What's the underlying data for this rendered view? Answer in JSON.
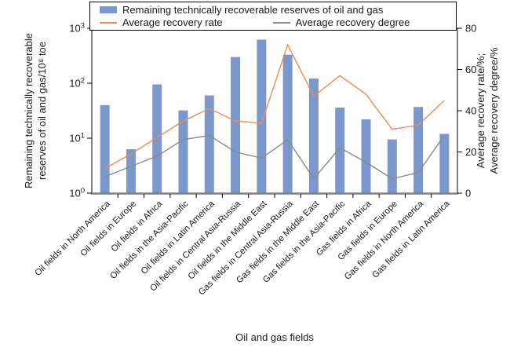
{
  "legend": {
    "bar_label": "Remaining technically recoverable reserves of oil and gas",
    "rate_label": "Average recovery rate",
    "degree_label": "Average recovery degree"
  },
  "colors": {
    "bar": "#7C97CB",
    "rate_line": "#ED8C50",
    "degree_line": "#898989",
    "frame": "#000000",
    "baseline": "#7F7F7F"
  },
  "chart_data": {
    "type": "bar",
    "title": "",
    "xlabel": "Oil and gas fields",
    "categories": [
      "Oil fields in North America",
      "Oil fields in Europe",
      "Oil fields in Africa",
      "Oil fields in the Asia-Pacific",
      "Oil fields in Latin America",
      "Oil fields in Central Asia-Russia",
      "Oil fields in the Middle East",
      "Gas fields in Central Asia-Russia",
      "Gas fields in the Middle East",
      "Gas fields in the Asia-Pacific",
      "Gas fields in Africa",
      "Gas fields in Europe",
      "Gas fields in North America",
      "Gas fields in Latin America"
    ],
    "series": [
      {
        "name": "Remaining technically recoverable reserves of oil and gas",
        "type": "bar",
        "axis": "left-log",
        "values": [
          40,
          6.3,
          95,
          32,
          60,
          300,
          620,
          330,
          122,
          36,
          22,
          9.5,
          37,
          12
        ]
      },
      {
        "name": "Average recovery rate",
        "type": "line",
        "axis": "right-linear",
        "values": [
          12,
          19,
          27,
          35,
          41,
          35,
          34,
          72,
          47,
          57,
          48,
          31,
          33,
          45
        ]
      },
      {
        "name": "Average recovery degree",
        "type": "line",
        "axis": "right-linear",
        "values": [
          8,
          13,
          18,
          26,
          28,
          20,
          17,
          26,
          7,
          22,
          15,
          7,
          10,
          28
        ]
      }
    ],
    "y_left": {
      "scale": "log",
      "min_exp": 0,
      "max_exp": 3,
      "tick_exponents": [
        0,
        1,
        2,
        3
      ],
      "tick_base": "10",
      "label_lines": [
        "Remaining technically recoverable",
        "reserves of oil and gas/10⁸ toe"
      ]
    },
    "y_right": {
      "scale": "linear",
      "min": 0,
      "max": 80,
      "step": 20,
      "label_lines": [
        "Average recovery rate/%;",
        "Average recovery degree/%"
      ]
    },
    "grid": false,
    "legend_position": "top"
  }
}
